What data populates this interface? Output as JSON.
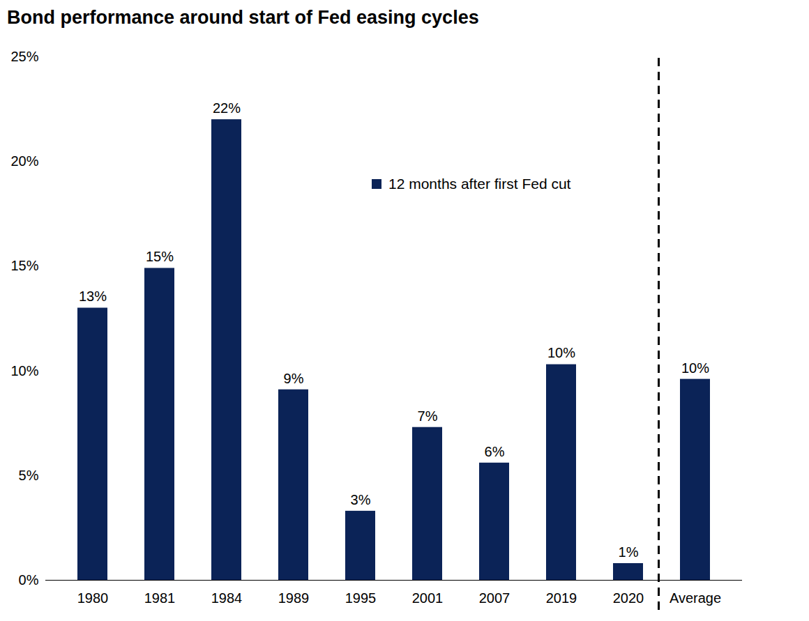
{
  "chart_data": {
    "type": "bar",
    "title": "Bond performance around start of Fed easing cycles",
    "categories": [
      "1980",
      "1981",
      "1984",
      "1989",
      "1995",
      "2001",
      "2007",
      "2019",
      "2020",
      "Average"
    ],
    "series": [
      {
        "name": "12 months after first Fed cut",
        "color": "#0b2357",
        "values": [
          13.0,
          14.9,
          22.0,
          9.1,
          3.3,
          7.3,
          5.6,
          10.3,
          0.8,
          9.6
        ],
        "value_labels": [
          "13%",
          "15%",
          "22%",
          "9%",
          "3%",
          "7%",
          "6%",
          "10%",
          "1%",
          "10%"
        ]
      }
    ],
    "ylim": [
      0,
      25
    ],
    "yticks": [
      {
        "value": 0,
        "label": "0%"
      },
      {
        "value": 5,
        "label": "5%"
      },
      {
        "value": 10,
        "label": "10%"
      },
      {
        "value": 15,
        "label": "15%"
      },
      {
        "value": 20,
        "label": "20%"
      },
      {
        "value": 25,
        "label": "25%"
      }
    ],
    "grid": false,
    "legend": "top",
    "data_labels": true
  }
}
